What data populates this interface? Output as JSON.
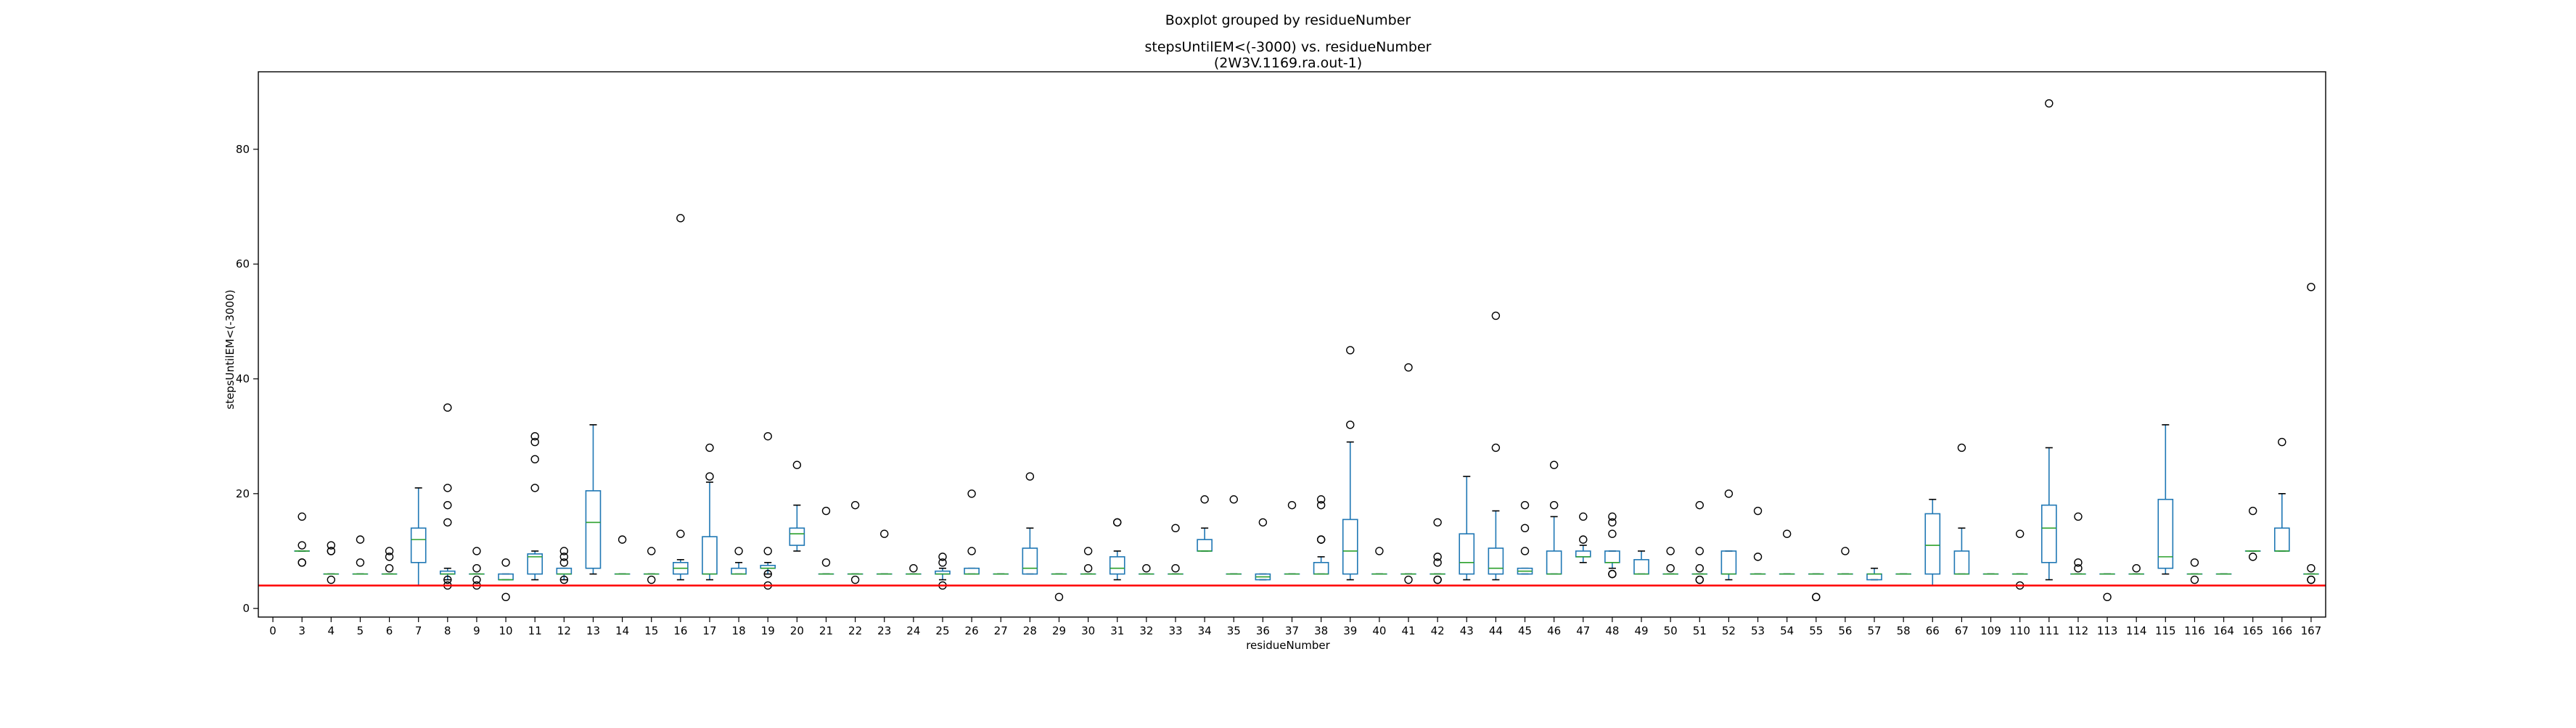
{
  "chart_data": {
    "type": "box",
    "suptitle": "Boxplot grouped by residueNumber",
    "title_line1": "stepsUntilEM<(-3000) vs. residueNumber",
    "title_line2": "(2W3V.1169.ra.out-1)",
    "xlabel": "residueNumber",
    "ylabel": "stepsUntilEM<(-3000)",
    "ylim": [
      -1.5,
      93.5
    ],
    "yticks": [
      0,
      20,
      40,
      60,
      80
    ],
    "reference_line": {
      "y": 4,
      "color": "#ff0000"
    },
    "colors": {
      "box": "#1f77b4",
      "median": "#2ca02c",
      "outlier": "#000000",
      "axis": "#000000"
    },
    "categories": [
      "0",
      "3",
      "4",
      "5",
      "6",
      "7",
      "8",
      "9",
      "10",
      "11",
      "12",
      "13",
      "14",
      "15",
      "16",
      "17",
      "18",
      "19",
      "20",
      "21",
      "22",
      "23",
      "24",
      "25",
      "26",
      "27",
      "28",
      "29",
      "30",
      "31",
      "32",
      "33",
      "34",
      "35",
      "36",
      "37",
      "38",
      "39",
      "40",
      "41",
      "42",
      "43",
      "44",
      "45",
      "46",
      "47",
      "48",
      "49",
      "50",
      "51",
      "52",
      "53",
      "54",
      "55",
      "56",
      "57",
      "58",
      "66",
      "67",
      "109",
      "110",
      "111",
      "112",
      "113",
      "114",
      "115",
      "116",
      "164",
      "165",
      "166",
      "167"
    ],
    "boxes": [
      {
        "q1": 4,
        "med": 4,
        "q3": 4,
        "wlo": 4,
        "whi": 4,
        "out": []
      },
      {
        "q1": 10,
        "med": 10,
        "q3": 10,
        "wlo": 10,
        "whi": 10,
        "out": [
          8,
          8,
          11,
          16
        ]
      },
      {
        "q1": 6,
        "med": 6,
        "q3": 6,
        "wlo": 6,
        "whi": 6,
        "out": [
          5,
          10,
          10,
          11
        ]
      },
      {
        "q1": 6,
        "med": 6,
        "q3": 6,
        "wlo": 6,
        "whi": 6,
        "out": [
          8,
          12
        ]
      },
      {
        "q1": 6,
        "med": 6,
        "q3": 6,
        "wlo": 6,
        "whi": 6,
        "out": [
          7,
          9,
          10
        ]
      },
      {
        "q1": 8,
        "med": 12,
        "q3": 14,
        "wlo": 4,
        "whi": 21,
        "out": []
      },
      {
        "q1": 6,
        "med": 6,
        "q3": 6.5,
        "wlo": 5,
        "whi": 7,
        "out": [
          4,
          5,
          15,
          18,
          21,
          35
        ]
      },
      {
        "q1": 6,
        "med": 6,
        "q3": 6,
        "wlo": 6,
        "whi": 6,
        "out": [
          4,
          5,
          7,
          10
        ]
      },
      {
        "q1": 5,
        "med": 5,
        "q3": 6,
        "wlo": 5,
        "whi": 6,
        "out": [
          2,
          8
        ]
      },
      {
        "q1": 6,
        "med": 9,
        "q3": 9.5,
        "wlo": 5,
        "whi": 10,
        "out": [
          21,
          26,
          29,
          30
        ]
      },
      {
        "q1": 6,
        "med": 6,
        "q3": 7,
        "wlo": 5,
        "whi": 7,
        "out": [
          5,
          8,
          9,
          10
        ]
      },
      {
        "q1": 7,
        "med": 15,
        "q3": 20.5,
        "wlo": 6,
        "whi": 32,
        "out": []
      },
      {
        "q1": 6,
        "med": 6,
        "q3": 6,
        "wlo": 6,
        "whi": 6,
        "out": [
          12
        ]
      },
      {
        "q1": 6,
        "med": 6,
        "q3": 6,
        "wlo": 6,
        "whi": 6,
        "out": [
          5,
          10
        ]
      },
      {
        "q1": 6,
        "med": 7,
        "q3": 8,
        "wlo": 5,
        "whi": 8.5,
        "out": [
          13,
          68
        ]
      },
      {
        "q1": 6,
        "med": 6,
        "q3": 12.5,
        "wlo": 5,
        "whi": 22,
        "out": [
          23,
          28
        ]
      },
      {
        "q1": 6,
        "med": 6,
        "q3": 7,
        "wlo": 6,
        "whi": 8,
        "out": [
          10
        ]
      },
      {
        "q1": 7,
        "med": 7,
        "q3": 7.5,
        "wlo": 6,
        "whi": 8,
        "out": [
          4,
          6,
          10,
          30
        ]
      },
      {
        "q1": 11,
        "med": 13,
        "q3": 14,
        "wlo": 10,
        "whi": 18,
        "out": [
          25
        ]
      },
      {
        "q1": 6,
        "med": 6,
        "q3": 6,
        "wlo": 6,
        "whi": 6,
        "out": [
          8,
          17
        ]
      },
      {
        "q1": 6,
        "med": 6,
        "q3": 6,
        "wlo": 6,
        "whi": 6,
        "out": [
          5,
          18
        ]
      },
      {
        "q1": 6,
        "med": 6,
        "q3": 6,
        "wlo": 6,
        "whi": 6,
        "out": [
          13
        ]
      },
      {
        "q1": 6,
        "med": 6,
        "q3": 6,
        "wlo": 6,
        "whi": 6,
        "out": [
          7
        ]
      },
      {
        "q1": 6,
        "med": 6,
        "q3": 6.5,
        "wlo": 5,
        "whi": 7,
        "out": [
          4,
          8,
          9
        ]
      },
      {
        "q1": 6,
        "med": 6,
        "q3": 7,
        "wlo": 6,
        "whi": 7,
        "out": [
          10,
          20
        ]
      },
      {
        "q1": 6,
        "med": 6,
        "q3": 6,
        "wlo": 6,
        "whi": 6,
        "out": []
      },
      {
        "q1": 6,
        "med": 7,
        "q3": 10.5,
        "wlo": 6,
        "whi": 14,
        "out": [
          23
        ]
      },
      {
        "q1": 6,
        "med": 6,
        "q3": 6,
        "wlo": 6,
        "whi": 6,
        "out": [
          2
        ]
      },
      {
        "q1": 6,
        "med": 6,
        "q3": 6,
        "wlo": 6,
        "whi": 6,
        "out": [
          7,
          10
        ]
      },
      {
        "q1": 6,
        "med": 7,
        "q3": 9,
        "wlo": 5,
        "whi": 10,
        "out": [
          15,
          15
        ]
      },
      {
        "q1": 6,
        "med": 6,
        "q3": 6,
        "wlo": 6,
        "whi": 6,
        "out": [
          7
        ]
      },
      {
        "q1": 6,
        "med": 6,
        "q3": 6,
        "wlo": 6,
        "whi": 6,
        "out": [
          7,
          14
        ]
      },
      {
        "q1": 10,
        "med": 10,
        "q3": 12,
        "wlo": 10,
        "whi": 14,
        "out": [
          19
        ]
      },
      {
        "q1": 6,
        "med": 6,
        "q3": 6,
        "wlo": 6,
        "whi": 6,
        "out": [
          19
        ]
      },
      {
        "q1": 5,
        "med": 5.5,
        "q3": 6,
        "wlo": 5,
        "whi": 6,
        "out": [
          15
        ]
      },
      {
        "q1": 6,
        "med": 6,
        "q3": 6,
        "wlo": 6,
        "whi": 6,
        "out": [
          18
        ]
      },
      {
        "q1": 6,
        "med": 6,
        "q3": 8,
        "wlo": 6,
        "whi": 9,
        "out": [
          12,
          12,
          18,
          19
        ]
      },
      {
        "q1": 6,
        "med": 10,
        "q3": 15.5,
        "wlo": 5,
        "whi": 29,
        "out": [
          32,
          45
        ]
      },
      {
        "q1": 6,
        "med": 6,
        "q3": 6,
        "wlo": 6,
        "whi": 6,
        "out": [
          10
        ]
      },
      {
        "q1": 6,
        "med": 6,
        "q3": 6,
        "wlo": 6,
        "whi": 6,
        "out": [
          5,
          42
        ]
      },
      {
        "q1": 6,
        "med": 6,
        "q3": 6,
        "wlo": 6,
        "whi": 6,
        "out": [
          5,
          5,
          8,
          9,
          15
        ]
      },
      {
        "q1": 6,
        "med": 8,
        "q3": 13,
        "wlo": 5,
        "whi": 23,
        "out": []
      },
      {
        "q1": 6,
        "med": 7,
        "q3": 10.5,
        "wlo": 5,
        "whi": 17,
        "out": [
          28,
          51
        ]
      },
      {
        "q1": 6,
        "med": 6.5,
        "q3": 7,
        "wlo": 6,
        "whi": 7,
        "out": [
          10,
          14,
          18
        ]
      },
      {
        "q1": 6,
        "med": 6,
        "q3": 10,
        "wlo": 6,
        "whi": 16,
        "out": [
          18,
          25
        ]
      },
      {
        "q1": 9,
        "med": 9,
        "q3": 10,
        "wlo": 8,
        "whi": 11,
        "out": [
          12,
          16
        ]
      },
      {
        "q1": 8,
        "med": 8,
        "q3": 10,
        "wlo": 7,
        "whi": 10,
        "out": [
          6,
          6,
          13,
          15,
          16
        ]
      },
      {
        "q1": 6,
        "med": 6,
        "q3": 8.5,
        "wlo": 6,
        "whi": 10,
        "out": []
      },
      {
        "q1": 6,
        "med": 6,
        "q3": 6,
        "wlo": 6,
        "whi": 6,
        "out": [
          7,
          10
        ]
      },
      {
        "q1": 6,
        "med": 6,
        "q3": 6,
        "wlo": 6,
        "whi": 6,
        "out": [
          5,
          5,
          7,
          10,
          18
        ]
      },
      {
        "q1": 6,
        "med": 6,
        "q3": 10,
        "wlo": 5,
        "whi": 10,
        "out": [
          20
        ]
      },
      {
        "q1": 6,
        "med": 6,
        "q3": 6,
        "wlo": 6,
        "whi": 6,
        "out": [
          9,
          17
        ]
      },
      {
        "q1": 6,
        "med": 6,
        "q3": 6,
        "wlo": 6,
        "whi": 6,
        "out": [
          13
        ]
      },
      {
        "q1": 6,
        "med": 6,
        "q3": 6,
        "wlo": 6,
        "whi": 6,
        "out": [
          2,
          2
        ]
      },
      {
        "q1": 6,
        "med": 6,
        "q3": 6,
        "wlo": 6,
        "whi": 6,
        "out": [
          10
        ]
      },
      {
        "q1": 5,
        "med": 6,
        "q3": 6,
        "wlo": 5,
        "whi": 7,
        "out": []
      },
      {
        "q1": 6,
        "med": 6,
        "q3": 6,
        "wlo": 6,
        "whi": 6,
        "out": []
      },
      {
        "q1": 6,
        "med": 11,
        "q3": 16.5,
        "wlo": 4,
        "whi": 19,
        "out": []
      },
      {
        "q1": 6,
        "med": 6,
        "q3": 10,
        "wlo": 6,
        "whi": 14,
        "out": [
          28
        ]
      },
      {
        "q1": 6,
        "med": 6,
        "q3": 6,
        "wlo": 6,
        "whi": 6,
        "out": []
      },
      {
        "q1": 6,
        "med": 6,
        "q3": 6,
        "wlo": 6,
        "whi": 6,
        "out": [
          4,
          13
        ]
      },
      {
        "q1": 8,
        "med": 14,
        "q3": 18,
        "wlo": 5,
        "whi": 28,
        "out": [
          88
        ]
      },
      {
        "q1": 6,
        "med": 6,
        "q3": 6,
        "wlo": 6,
        "whi": 6,
        "out": [
          7,
          8,
          16
        ]
      },
      {
        "q1": 6,
        "med": 6,
        "q3": 6,
        "wlo": 6,
        "whi": 6,
        "out": [
          2
        ]
      },
      {
        "q1": 6,
        "med": 6,
        "q3": 6,
        "wlo": 6,
        "whi": 6,
        "out": [
          7
        ]
      },
      {
        "q1": 7,
        "med": 9,
        "q3": 19,
        "wlo": 6,
        "whi": 32,
        "out": []
      },
      {
        "q1": 6,
        "med": 6,
        "q3": 6,
        "wlo": 6,
        "whi": 6,
        "out": [
          5,
          8
        ]
      },
      {
        "q1": 6,
        "med": 6,
        "q3": 6,
        "wlo": 6,
        "whi": 6,
        "out": []
      },
      {
        "q1": 10,
        "med": 10,
        "q3": 10,
        "wlo": 10,
        "whi": 10,
        "out": [
          9,
          17
        ]
      },
      {
        "q1": 10,
        "med": 10,
        "q3": 14,
        "wlo": 10,
        "whi": 20,
        "out": [
          29
        ]
      },
      {
        "q1": 6,
        "med": 6,
        "q3": 6,
        "wlo": 6,
        "whi": 6,
        "out": [
          5,
          5,
          7,
          56
        ]
      }
    ]
  }
}
